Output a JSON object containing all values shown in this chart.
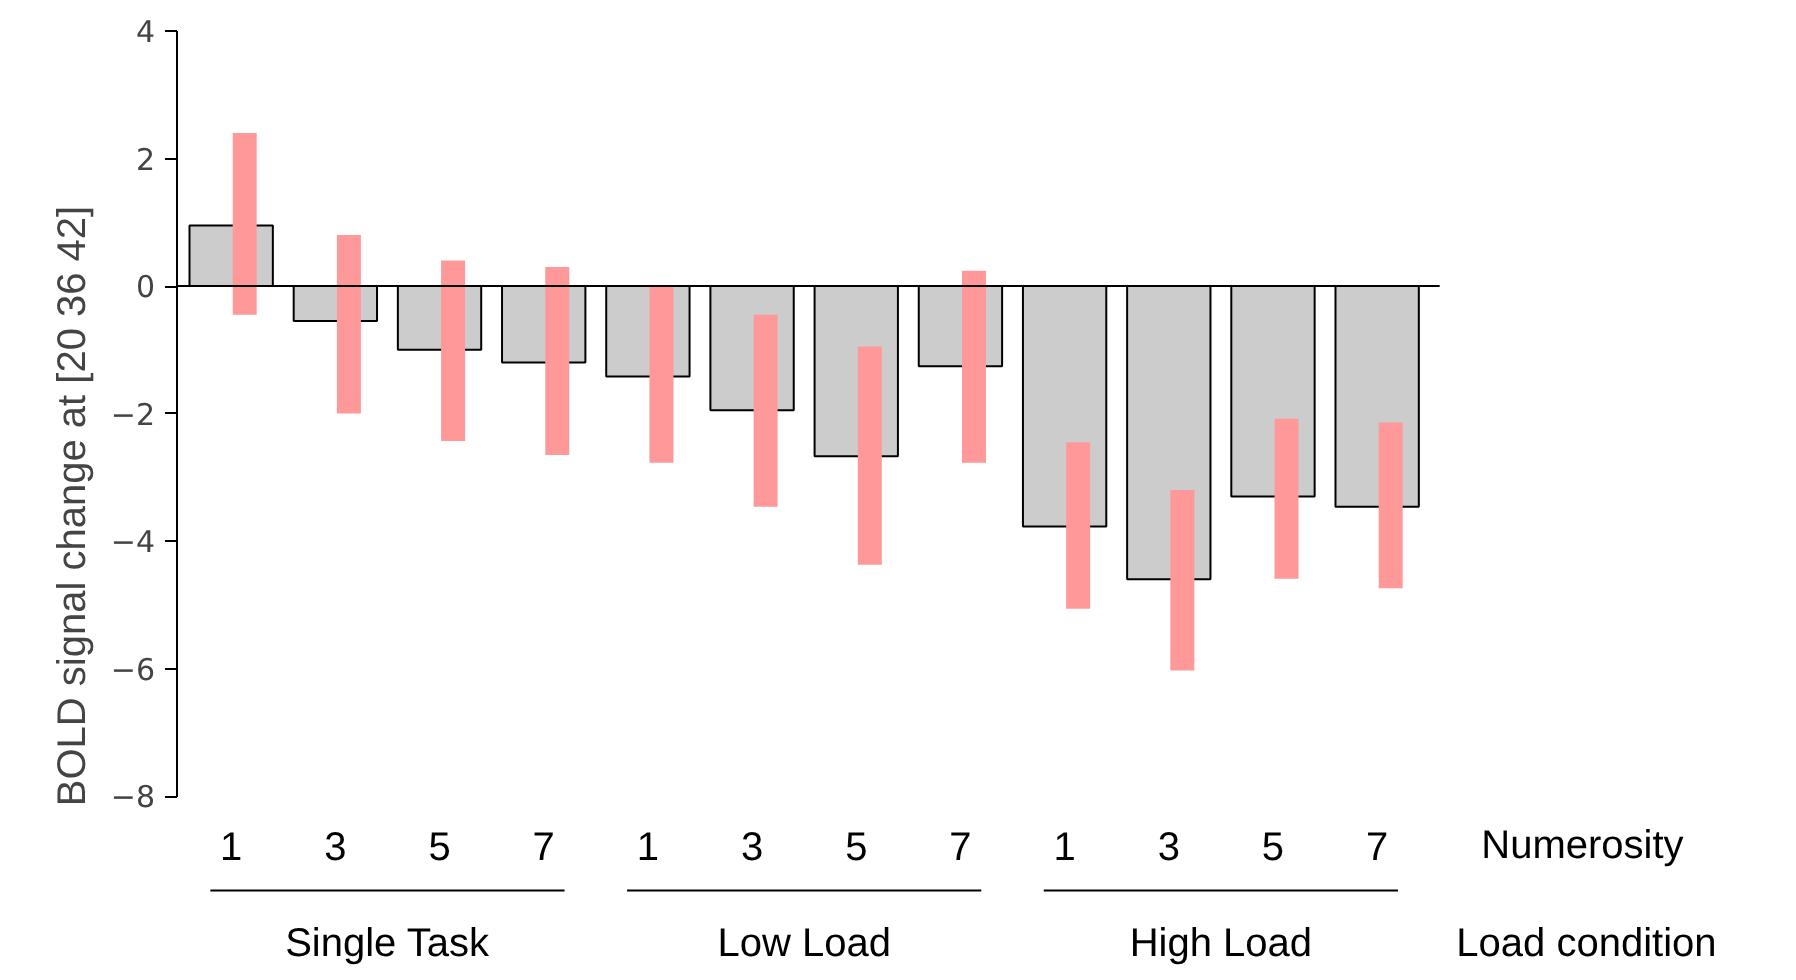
{
  "chart_data": {
    "type": "bar",
    "ylabel": "BOLD signal change at [20 36 42]",
    "categories": [
      "1",
      "3",
      "5",
      "7",
      "1",
      "3",
      "5",
      "7",
      "1",
      "3",
      "5",
      "7"
    ],
    "values": [
      0.95,
      -0.55,
      -1.0,
      -1.2,
      -1.42,
      -1.95,
      -2.67,
      -1.26,
      -3.77,
      -4.6,
      -3.3,
      -3.46
    ],
    "color": "#cccccc",
    "errors": [
      [
        -0.45,
        2.4
      ],
      [
        -2.0,
        0.8
      ],
      [
        -2.43,
        0.4
      ],
      [
        -2.65,
        0.3
      ],
      [
        -2.77,
        0.0
      ],
      [
        -3.46,
        -0.45
      ],
      [
        -4.37,
        -0.95
      ],
      [
        -2.77,
        0.24
      ],
      [
        -5.06,
        -2.45
      ],
      [
        -6.03,
        -3.2
      ],
      [
        -4.59,
        -2.08
      ],
      [
        -4.74,
        -2.14
      ]
    ],
    "ylim": [
      -8,
      4
    ],
    "yticks": [
      {
        "value": -8,
        "label": "−8"
      },
      {
        "value": -6,
        "label": "−6"
      },
      {
        "value": -4,
        "label": "−4"
      },
      {
        "value": -2,
        "label": "−2"
      },
      0,
      2,
      4
    ],
    "ref_lines": [
      {
        "axis": "y",
        "value": 0,
        "color": "#000000"
      }
    ],
    "annotations": [
      "Single Task",
      "Low Load",
      "High Load",
      "Numerosity",
      "Load condition"
    ],
    "grid": false
  }
}
